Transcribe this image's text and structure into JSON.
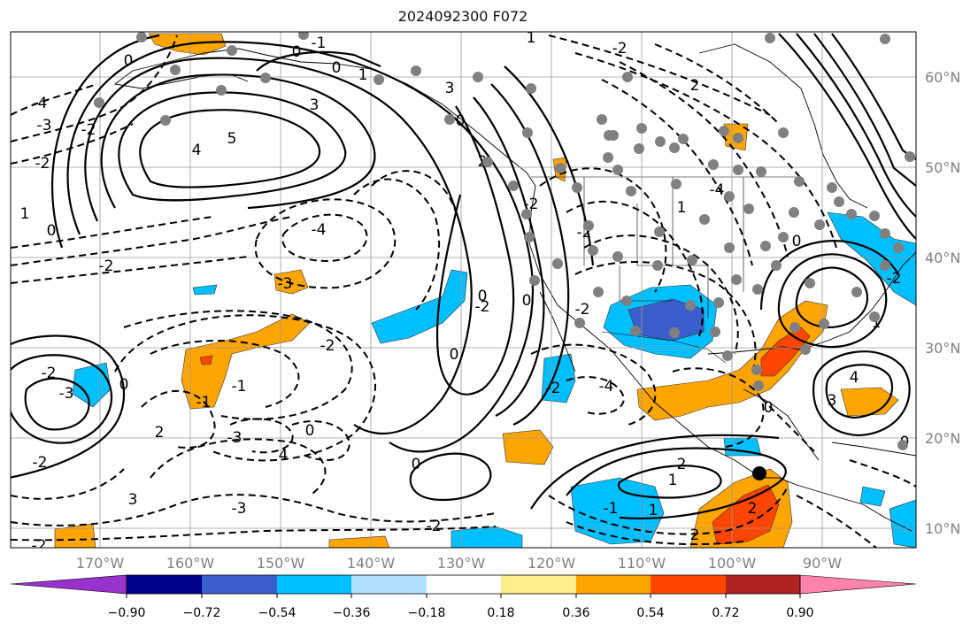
{
  "title": "2024092300 F072",
  "colors": {
    "ocean": "#ffffff",
    "land_line": "#000000",
    "grid": "#9a9a9a",
    "station": "#808080",
    "marker": "#000000"
  },
  "lon_labels": [
    "170°W",
    "160°W",
    "150°W",
    "140°W",
    "130°W",
    "120°W",
    "110°W",
    "100°W",
    "90°W"
  ],
  "lat_labels": [
    "60°N",
    "50°N",
    "40°N",
    "30°N",
    "20°N",
    "10°N"
  ],
  "contour_labels": [
    "-1",
    "0",
    "0",
    "1",
    "-4",
    "-3",
    "-2",
    "-2",
    "1",
    "0",
    "3",
    "4",
    "5",
    "3",
    "2",
    "-2",
    "-4",
    "-3",
    "-2",
    "0",
    "-1",
    "-1",
    "-3",
    "-2",
    "-2",
    "0",
    "0",
    "-3",
    "2",
    "4",
    "3",
    "-3",
    "-2",
    "0",
    "-2",
    "-4",
    "-2",
    "-2",
    "-2",
    "2",
    "1",
    "1",
    "-1",
    "0",
    "-2",
    "0",
    "-2",
    "-4",
    "2",
    "0",
    "1",
    "-2",
    "0",
    "2",
    "2",
    "0",
    "1",
    "1",
    "0",
    "-2",
    "4",
    "3",
    "0"
  ],
  "colorbar": {
    "tick_labels": [
      "−0.90",
      "−0.72",
      "−0.54",
      "−0.36",
      "−0.18",
      "0.18",
      "0.36",
      "0.54",
      "0.72",
      "0.90"
    ],
    "colors": [
      "#9932cc",
      "#00008b",
      "#3a5fcd",
      "#00bfff",
      "#b0e2ff",
      "#ffffff",
      "#ffec8b",
      "#ffa500",
      "#ff4500",
      "#b22222",
      "#ff82ab"
    ]
  }
}
